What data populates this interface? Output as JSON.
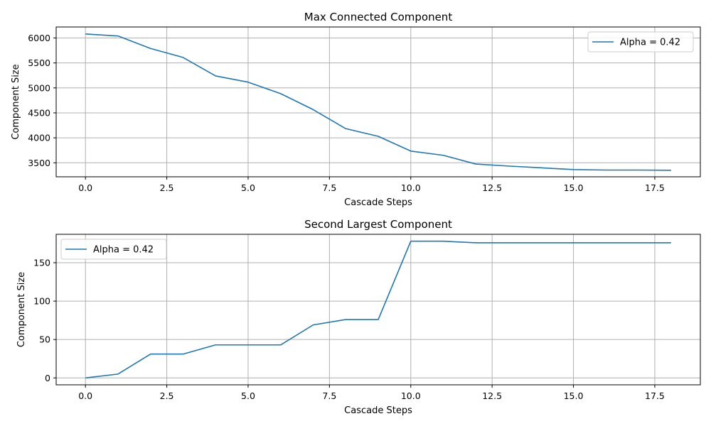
{
  "chart_data": [
    {
      "type": "line",
      "title": "Max Connected Component",
      "xlabel": "Cascade Steps",
      "ylabel": "Component Size",
      "xlim": [
        -0.9,
        18.9
      ],
      "ylim": [
        3220,
        6220
      ],
      "xticks": [
        0.0,
        2.5,
        5.0,
        7.5,
        10.0,
        12.5,
        15.0,
        17.5
      ],
      "xtick_labels": [
        "0.0",
        "2.5",
        "5.0",
        "7.5",
        "10.0",
        "12.5",
        "15.0",
        "17.5"
      ],
      "yticks": [
        3500,
        4000,
        4500,
        5000,
        5500,
        6000
      ],
      "ytick_labels": [
        "3500",
        "4000",
        "4500",
        "5000",
        "5500",
        "6000"
      ],
      "grid": true,
      "legend_position": "top-right",
      "series": [
        {
          "name": "Alpha = 0.42",
          "color": "#1f77b4",
          "x": [
            0,
            1,
            2,
            3,
            4,
            5,
            6,
            7,
            8,
            9,
            10,
            11,
            12,
            13,
            14,
            15,
            16,
            17,
            18
          ],
          "y": [
            6080,
            6040,
            5790,
            5610,
            5240,
            5115,
            4885,
            4565,
            4185,
            4030,
            3735,
            3650,
            3475,
            3435,
            3400,
            3365,
            3355,
            3355,
            3350
          ]
        }
      ]
    },
    {
      "type": "line",
      "title": "Second Largest Component",
      "xlabel": "Cascade Steps",
      "ylabel": "Component Size",
      "xlim": [
        -0.9,
        18.9
      ],
      "ylim": [
        -9,
        187
      ],
      "xticks": [
        0.0,
        2.5,
        5.0,
        7.5,
        10.0,
        12.5,
        15.0,
        17.5
      ],
      "xtick_labels": [
        "0.0",
        "2.5",
        "5.0",
        "7.5",
        "10.0",
        "12.5",
        "15.0",
        "17.5"
      ],
      "yticks": [
        0,
        50,
        100,
        150
      ],
      "ytick_labels": [
        "0",
        "50",
        "100",
        "150"
      ],
      "grid": true,
      "legend_position": "top-left",
      "series": [
        {
          "name": "Alpha = 0.42",
          "color": "#1f77b4",
          "x": [
            0,
            1,
            2,
            3,
            4,
            5,
            6,
            7,
            8,
            9,
            10,
            11,
            12,
            13,
            14,
            15,
            16,
            17,
            18
          ],
          "y": [
            0,
            5,
            31,
            31,
            43,
            43,
            43,
            69,
            76,
            76,
            178,
            178,
            176,
            176,
            176,
            176,
            176,
            176,
            176
          ]
        }
      ]
    }
  ]
}
